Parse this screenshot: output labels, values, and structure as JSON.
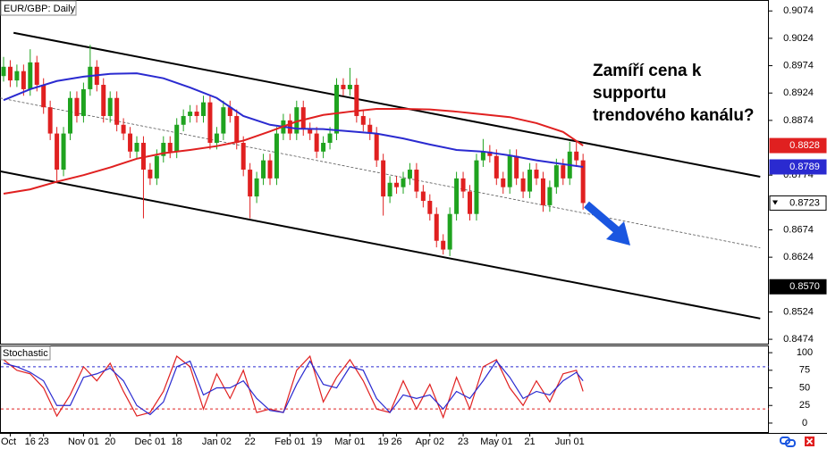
{
  "chart_data": {
    "type": "candlestick",
    "title": "EUR/GBP: Daily",
    "up_color": "#1fa31f",
    "down_color": "#e02020",
    "ylim": [
      0.8466,
      0.9094
    ],
    "yticks": [
      0.9074,
      0.9024,
      0.8974,
      0.8924,
      0.8874,
      0.8774,
      0.8674,
      0.8624,
      0.8524,
      0.8474
    ],
    "categories": [
      null,
      "Oct",
      null,
      null,
      "16",
      null,
      "23",
      null,
      null,
      null,
      null,
      null,
      "Nov 01",
      null,
      null,
      null,
      "20",
      null,
      null,
      null,
      null,
      null,
      "Dec 01",
      null,
      null,
      null,
      "18",
      null,
      null,
      null,
      null,
      null,
      "Jan 02",
      null,
      null,
      null,
      null,
      "22",
      null,
      null,
      null,
      null,
      null,
      "Feb 01",
      null,
      null,
      null,
      "19",
      null,
      null,
      null,
      null,
      "Mar 01",
      null,
      null,
      null,
      null,
      "19",
      null,
      "26",
      null,
      null,
      null,
      null,
      "Apr 02",
      null,
      null,
      null,
      null,
      "23",
      null,
      null,
      null,
      null,
      "May 01",
      null,
      null,
      null,
      null,
      "21",
      null,
      null,
      null,
      null,
      null,
      "Jun 01",
      null,
      null
    ],
    "ohlc": [
      [
        0.8955,
        0.899,
        0.8945,
        0.8972
      ],
      [
        0.8972,
        0.8984,
        0.8935,
        0.8947
      ],
      [
        0.8947,
        0.8976,
        0.8935,
        0.8964
      ],
      [
        0.8964,
        0.8976,
        0.8919,
        0.8931
      ],
      [
        0.8931,
        0.9004,
        0.8919,
        0.898
      ],
      [
        0.898,
        0.8992,
        0.8927,
        0.8939
      ],
      [
        0.8939,
        0.8951,
        0.8886,
        0.8898
      ],
      [
        0.8898,
        0.891,
        0.8838,
        0.885
      ],
      [
        0.885,
        0.8862,
        0.876,
        0.8784
      ],
      [
        0.8784,
        0.8862,
        0.8772,
        0.885
      ],
      [
        0.885,
        0.8927,
        0.8838,
        0.8915
      ],
      [
        0.8915,
        0.8927,
        0.887,
        0.8882
      ],
      [
        0.8882,
        0.8943,
        0.887,
        0.8931
      ],
      [
        0.8931,
        0.9012,
        0.8919,
        0.8972
      ],
      [
        0.8972,
        0.8984,
        0.8927,
        0.8939
      ],
      [
        0.8939,
        0.8951,
        0.887,
        0.8882
      ],
      [
        0.8882,
        0.8927,
        0.887,
        0.8915
      ],
      [
        0.8915,
        0.8927,
        0.8854,
        0.8866
      ],
      [
        0.8866,
        0.8878,
        0.8838,
        0.885
      ],
      [
        0.885,
        0.8862,
        0.8805,
        0.8817
      ],
      [
        0.8817,
        0.8845,
        0.8805,
        0.8833
      ],
      [
        0.8833,
        0.8845,
        0.8695,
        0.8784
      ],
      [
        0.8784,
        0.8796,
        0.8756,
        0.8768
      ],
      [
        0.8768,
        0.8821,
        0.8756,
        0.8809
      ],
      [
        0.8809,
        0.8845,
        0.8797,
        0.8833
      ],
      [
        0.8833,
        0.8845,
        0.8805,
        0.8817
      ],
      [
        0.8817,
        0.8878,
        0.8805,
        0.8866
      ],
      [
        0.8866,
        0.8894,
        0.8854,
        0.8882
      ],
      [
        0.8882,
        0.8902,
        0.887,
        0.889
      ],
      [
        0.889,
        0.8902,
        0.887,
        0.8882
      ],
      [
        0.8882,
        0.8919,
        0.887,
        0.8907
      ],
      [
        0.8907,
        0.8919,
        0.8821,
        0.8833
      ],
      [
        0.8833,
        0.8862,
        0.8821,
        0.885
      ],
      [
        0.885,
        0.891,
        0.8838,
        0.8898
      ],
      [
        0.8898,
        0.891,
        0.887,
        0.8882
      ],
      [
        0.8882,
        0.8894,
        0.8821,
        0.8833
      ],
      [
        0.8833,
        0.8845,
        0.8772,
        0.8784
      ],
      [
        0.8784,
        0.8796,
        0.8695,
        0.8735
      ],
      [
        0.8735,
        0.878,
        0.8723,
        0.8768
      ],
      [
        0.8768,
        0.8813,
        0.8756,
        0.8801
      ],
      [
        0.8801,
        0.8813,
        0.8756,
        0.8768
      ],
      [
        0.8768,
        0.8862,
        0.8756,
        0.885
      ],
      [
        0.885,
        0.8886,
        0.8838,
        0.8874
      ],
      [
        0.8874,
        0.8886,
        0.8838,
        0.885
      ],
      [
        0.885,
        0.891,
        0.8838,
        0.8898
      ],
      [
        0.8898,
        0.891,
        0.8846,
        0.8858
      ],
      [
        0.8858,
        0.887,
        0.8838,
        0.885
      ],
      [
        0.885,
        0.8862,
        0.8805,
        0.8817
      ],
      [
        0.8817,
        0.8845,
        0.8805,
        0.8833
      ],
      [
        0.8833,
        0.8862,
        0.8821,
        0.885
      ],
      [
        0.885,
        0.8951,
        0.8838,
        0.8939
      ],
      [
        0.8939,
        0.8951,
        0.8919,
        0.8931
      ],
      [
        0.8931,
        0.897,
        0.8919,
        0.8939
      ],
      [
        0.8939,
        0.8951,
        0.887,
        0.8882
      ],
      [
        0.8882,
        0.8894,
        0.8854,
        0.8866
      ],
      [
        0.8866,
        0.8878,
        0.8838,
        0.885
      ],
      [
        0.885,
        0.8862,
        0.8789,
        0.8801
      ],
      [
        0.8801,
        0.8813,
        0.87,
        0.8735
      ],
      [
        0.8735,
        0.8772,
        0.8723,
        0.876
      ],
      [
        0.876,
        0.8772,
        0.874,
        0.8752
      ],
      [
        0.8752,
        0.878,
        0.874,
        0.8768
      ],
      [
        0.8768,
        0.8796,
        0.8756,
        0.8784
      ],
      [
        0.8784,
        0.8796,
        0.8732,
        0.8744
      ],
      [
        0.8744,
        0.8756,
        0.8715,
        0.8727
      ],
      [
        0.8727,
        0.8739,
        0.8691,
        0.8703
      ],
      [
        0.8703,
        0.8715,
        0.8642,
        0.8654
      ],
      [
        0.8654,
        0.8666,
        0.8629,
        0.8638
      ],
      [
        0.8638,
        0.8715,
        0.8626,
        0.8703
      ],
      [
        0.8703,
        0.878,
        0.8691,
        0.8768
      ],
      [
        0.8768,
        0.878,
        0.8732,
        0.8744
      ],
      [
        0.8744,
        0.8756,
        0.8691,
        0.8703
      ],
      [
        0.8703,
        0.8813,
        0.8691,
        0.8801
      ],
      [
        0.8801,
        0.884,
        0.8789,
        0.8817
      ],
      [
        0.8817,
        0.8829,
        0.8797,
        0.8809
      ],
      [
        0.8809,
        0.8821,
        0.8756,
        0.8768
      ],
      [
        0.8768,
        0.878,
        0.874,
        0.8752
      ],
      [
        0.8752,
        0.8821,
        0.874,
        0.8809
      ],
      [
        0.8809,
        0.8821,
        0.8756,
        0.8768
      ],
      [
        0.8768,
        0.878,
        0.8732,
        0.8744
      ],
      [
        0.8744,
        0.8796,
        0.8732,
        0.8784
      ],
      [
        0.8784,
        0.8796,
        0.8756,
        0.8768
      ],
      [
        0.8768,
        0.878,
        0.8707,
        0.8719
      ],
      [
        0.8719,
        0.8764,
        0.8707,
        0.8752
      ],
      [
        0.8752,
        0.8804,
        0.874,
        0.8792
      ],
      [
        0.8792,
        0.8804,
        0.8756,
        0.8768
      ],
      [
        0.8768,
        0.8835,
        0.8756,
        0.8817
      ],
      [
        0.8817,
        0.8835,
        0.8789,
        0.8801
      ],
      [
        0.8801,
        0.8813,
        0.8711,
        0.8723
      ]
    ],
    "moving_averages": [
      {
        "color": "#2a2ad0",
        "x": [
          0,
          4,
          8,
          12,
          16,
          20,
          24,
          28,
          32,
          36,
          40,
          44,
          48,
          52,
          56,
          60,
          64,
          68,
          72,
          76,
          80,
          84,
          87
        ],
        "values": [
          0.8911,
          0.8931,
          0.8946,
          0.8954,
          0.8959,
          0.896,
          0.8951,
          0.8934,
          0.8915,
          0.8882,
          0.8866,
          0.8859,
          0.8858,
          0.8854,
          0.885,
          0.8841,
          0.883,
          0.882,
          0.8817,
          0.881,
          0.8801,
          0.8794,
          0.8789
        ]
      },
      {
        "color": "#e02020",
        "x": [
          0,
          4,
          8,
          12,
          16,
          20,
          24,
          28,
          32,
          36,
          40,
          44,
          48,
          52,
          56,
          60,
          64,
          68,
          72,
          76,
          80,
          84,
          87
        ],
        "values": [
          0.874,
          0.8748,
          0.8762,
          0.8774,
          0.8788,
          0.8804,
          0.8814,
          0.882,
          0.8827,
          0.8837,
          0.8854,
          0.8872,
          0.8884,
          0.889,
          0.8895,
          0.8895,
          0.8894,
          0.889,
          0.8885,
          0.888,
          0.8869,
          0.8853,
          0.8828
        ]
      }
    ],
    "trendlines": [
      {
        "x": [
          1.5,
          113.6
        ],
        "values": [
          0.9034,
          0.8771
        ],
        "dashed": false
      },
      {
        "x": [
          -0.54,
          113.6
        ],
        "values": [
          0.8781,
          0.8512
        ],
        "dashed": false
      },
      {
        "x": [
          -0.54,
          113.6
        ],
        "values": [
          0.8915,
          0.8641
        ],
        "dashed": true
      }
    ],
    "price_labels": [
      {
        "value": 0.8828,
        "color": "#e02020",
        "text_color": "#ffffff"
      },
      {
        "value": 0.8789,
        "color": "#2a2ad0",
        "text_color": "#ffffff"
      },
      {
        "value": 0.8723,
        "color": "#ffffff",
        "text_color": "#000000"
      },
      {
        "value": 0.857,
        "label": "0.8570",
        "color": "#000000",
        "text_color": "#ffffff"
      }
    ],
    "annotation": [
      "Zamíří cena k",
      "supportu",
      "trendového kanálu?"
    ],
    "indicator": {
      "title": "Stochastic",
      "ylim": [
        -14,
        109
      ],
      "yticks": [
        100,
        75,
        50,
        25,
        0
      ],
      "levels": [
        {
          "value": 80,
          "color": "#2a2ad0"
        },
        {
          "value": 20,
          "color": "#e02020"
        }
      ],
      "x": [
        0,
        2,
        4,
        6,
        8,
        10,
        12,
        14,
        16,
        18,
        20,
        22,
        24,
        26,
        28,
        30,
        32,
        34,
        36,
        38,
        40,
        42,
        44,
        46,
        48,
        50,
        52,
        54,
        56,
        58,
        60,
        62,
        64,
        66,
        68,
        70,
        72,
        74,
        76,
        78,
        80,
        82,
        84,
        86,
        87
      ],
      "series": [
        {
          "color": "#e02020",
          "values": [
            90,
            75,
            70,
            50,
            10,
            40,
            80,
            60,
            85,
            45,
            10,
            15,
            45,
            95,
            80,
            20,
            70,
            35,
            75,
            15,
            20,
            15,
            75,
            95,
            30,
            65,
            90,
            60,
            20,
            15,
            60,
            20,
            55,
            8,
            65,
            20,
            80,
            90,
            50,
            25,
            60,
            30,
            70,
            75,
            45
          ]
        },
        {
          "color": "#2a2ad0",
          "values": [
            85,
            80,
            72,
            60,
            25,
            25,
            65,
            70,
            78,
            60,
            25,
            12,
            30,
            80,
            88,
            40,
            50,
            50,
            60,
            35,
            18,
            15,
            55,
            88,
            55,
            50,
            80,
            75,
            35,
            15,
            40,
            35,
            40,
            20,
            45,
            35,
            60,
            88,
            65,
            35,
            45,
            40,
            60,
            72,
            60
          ]
        }
      ]
    }
  }
}
